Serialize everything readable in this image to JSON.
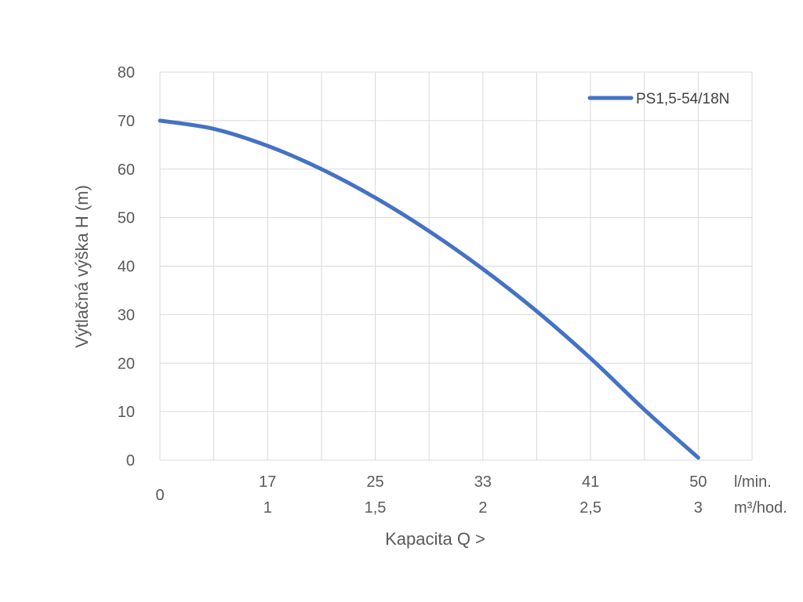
{
  "chart_data": {
    "type": "line",
    "title": "",
    "xlabel": "Kapacita Q >",
    "ylabel": "Výtlačná výška H (m)",
    "ylim": [
      0,
      80
    ],
    "yticks": [
      "0",
      "10",
      "20",
      "30",
      "40",
      "50",
      "60",
      "70",
      "80"
    ],
    "xlim": [
      0,
      55
    ],
    "x_origin_label": "0",
    "x_axis_rows": [
      {
        "unit": "l/min.",
        "labels": [
          "17",
          "25",
          "33",
          "41",
          "50"
        ]
      },
      {
        "unit": "m³/hod.",
        "labels": [
          "1",
          "1,5",
          "2",
          "2,5",
          "3"
        ]
      }
    ],
    "grid": true,
    "legend_position": "top-right",
    "series": [
      {
        "name": "PS1,5-54/18N",
        "color": "#4472C4",
        "x": [
          0,
          5,
          10,
          15,
          20,
          25,
          30,
          35,
          40,
          45,
          50
        ],
        "y": [
          70,
          68.3,
          64.8,
          60,
          54.1,
          47.2,
          39.4,
          30.7,
          21,
          10.4,
          0.5
        ]
      }
    ]
  }
}
